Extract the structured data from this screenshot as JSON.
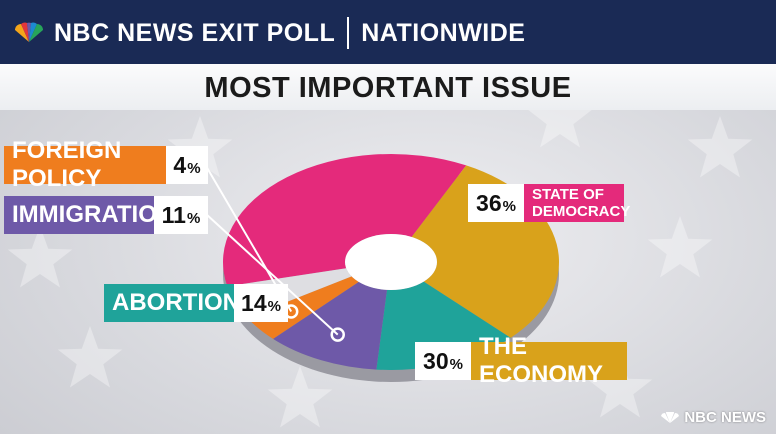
{
  "header": {
    "brand": "NBC NEWS EXIT POLL",
    "region": "NATIONWIDE"
  },
  "title": "MOST IMPORTANT ISSUE",
  "watermark": "NBC NEWS",
  "colors": {
    "democracy": "#e42a7b",
    "economy": "#d9a21b",
    "abortion": "#1fa39a",
    "immigration": "#6e59a8",
    "foreign": "#ef7d1e",
    "other": "#dedee2",
    "header_bg": "#1a2a55"
  },
  "chart_data": {
    "type": "pie",
    "title": "MOST IMPORTANT ISSUE",
    "slices": [
      {
        "label": "STATE OF DEMOCRACY",
        "label_lines": [
          "STATE OF",
          "DEMOCRACY"
        ],
        "value": 36,
        "pct_text": "36",
        "color": "#e42a7b"
      },
      {
        "label": "THE ECONOMY",
        "value": 30,
        "pct_text": "30",
        "color": "#d9a21b"
      },
      {
        "label": "ABORTION",
        "value": 14,
        "pct_text": "14",
        "color": "#1fa39a"
      },
      {
        "label": "IMMIGRATION",
        "value": 11,
        "pct_text": "11",
        "color": "#6e59a8"
      },
      {
        "label": "FOREIGN POLICY",
        "value": 4,
        "pct_text": "4",
        "color": "#ef7d1e"
      }
    ],
    "remainder_color": "#dedee2",
    "unit": "%",
    "legend": "callouts"
  }
}
